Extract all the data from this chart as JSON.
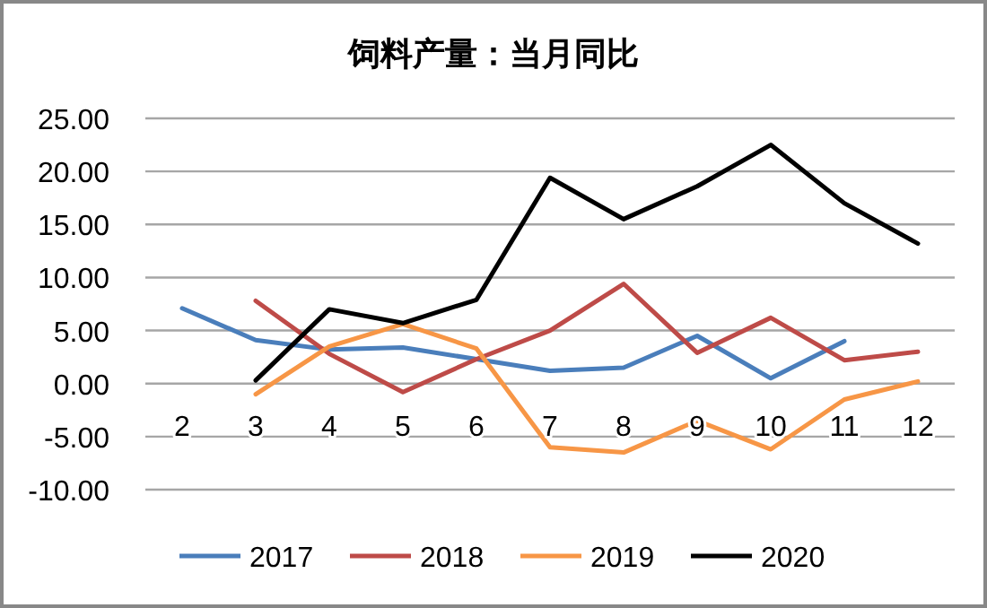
{
  "chart_data": {
    "type": "line",
    "title": "饲料产量：当月同比",
    "categories": [
      "2",
      "3",
      "4",
      "5",
      "6",
      "7",
      "8",
      "9",
      "10",
      "11",
      "12"
    ],
    "series": [
      {
        "name": "2017",
        "color": "#4a7ebb",
        "values": [
          7.1,
          4.1,
          3.2,
          3.4,
          2.3,
          1.2,
          1.5,
          4.5,
          0.5,
          4.0,
          null
        ]
      },
      {
        "name": "2018",
        "color": "#be4b48",
        "values": [
          null,
          7.8,
          2.8,
          -0.8,
          2.3,
          5.0,
          9.4,
          2.9,
          6.2,
          2.2,
          3.0
        ]
      },
      {
        "name": "2019",
        "color": "#f79646",
        "values": [
          null,
          -1.0,
          3.5,
          5.6,
          3.3,
          -6.0,
          -6.5,
          -3.5,
          -6.2,
          -1.5,
          0.2
        ]
      },
      {
        "name": "2020",
        "color": "#000000",
        "values": [
          null,
          0.3,
          7.0,
          5.7,
          7.9,
          19.4,
          15.5,
          18.6,
          22.5,
          17.0,
          13.2
        ]
      }
    ],
    "ylim": [
      -10,
      25
    ],
    "yticks": [
      {
        "value": -10,
        "label": "-10.00"
      },
      {
        "value": -5,
        "label": "-5.00"
      },
      {
        "value": 0,
        "label": "0.00"
      },
      {
        "value": 5,
        "label": "5.00"
      },
      {
        "value": 10,
        "label": "10.00"
      },
      {
        "value": 15,
        "label": "15.00"
      },
      {
        "value": 20,
        "label": "20.00"
      },
      {
        "value": 25,
        "label": "25.00"
      }
    ],
    "grid": "y",
    "legend": "bottom",
    "marker": "none",
    "line_style": "solid"
  }
}
